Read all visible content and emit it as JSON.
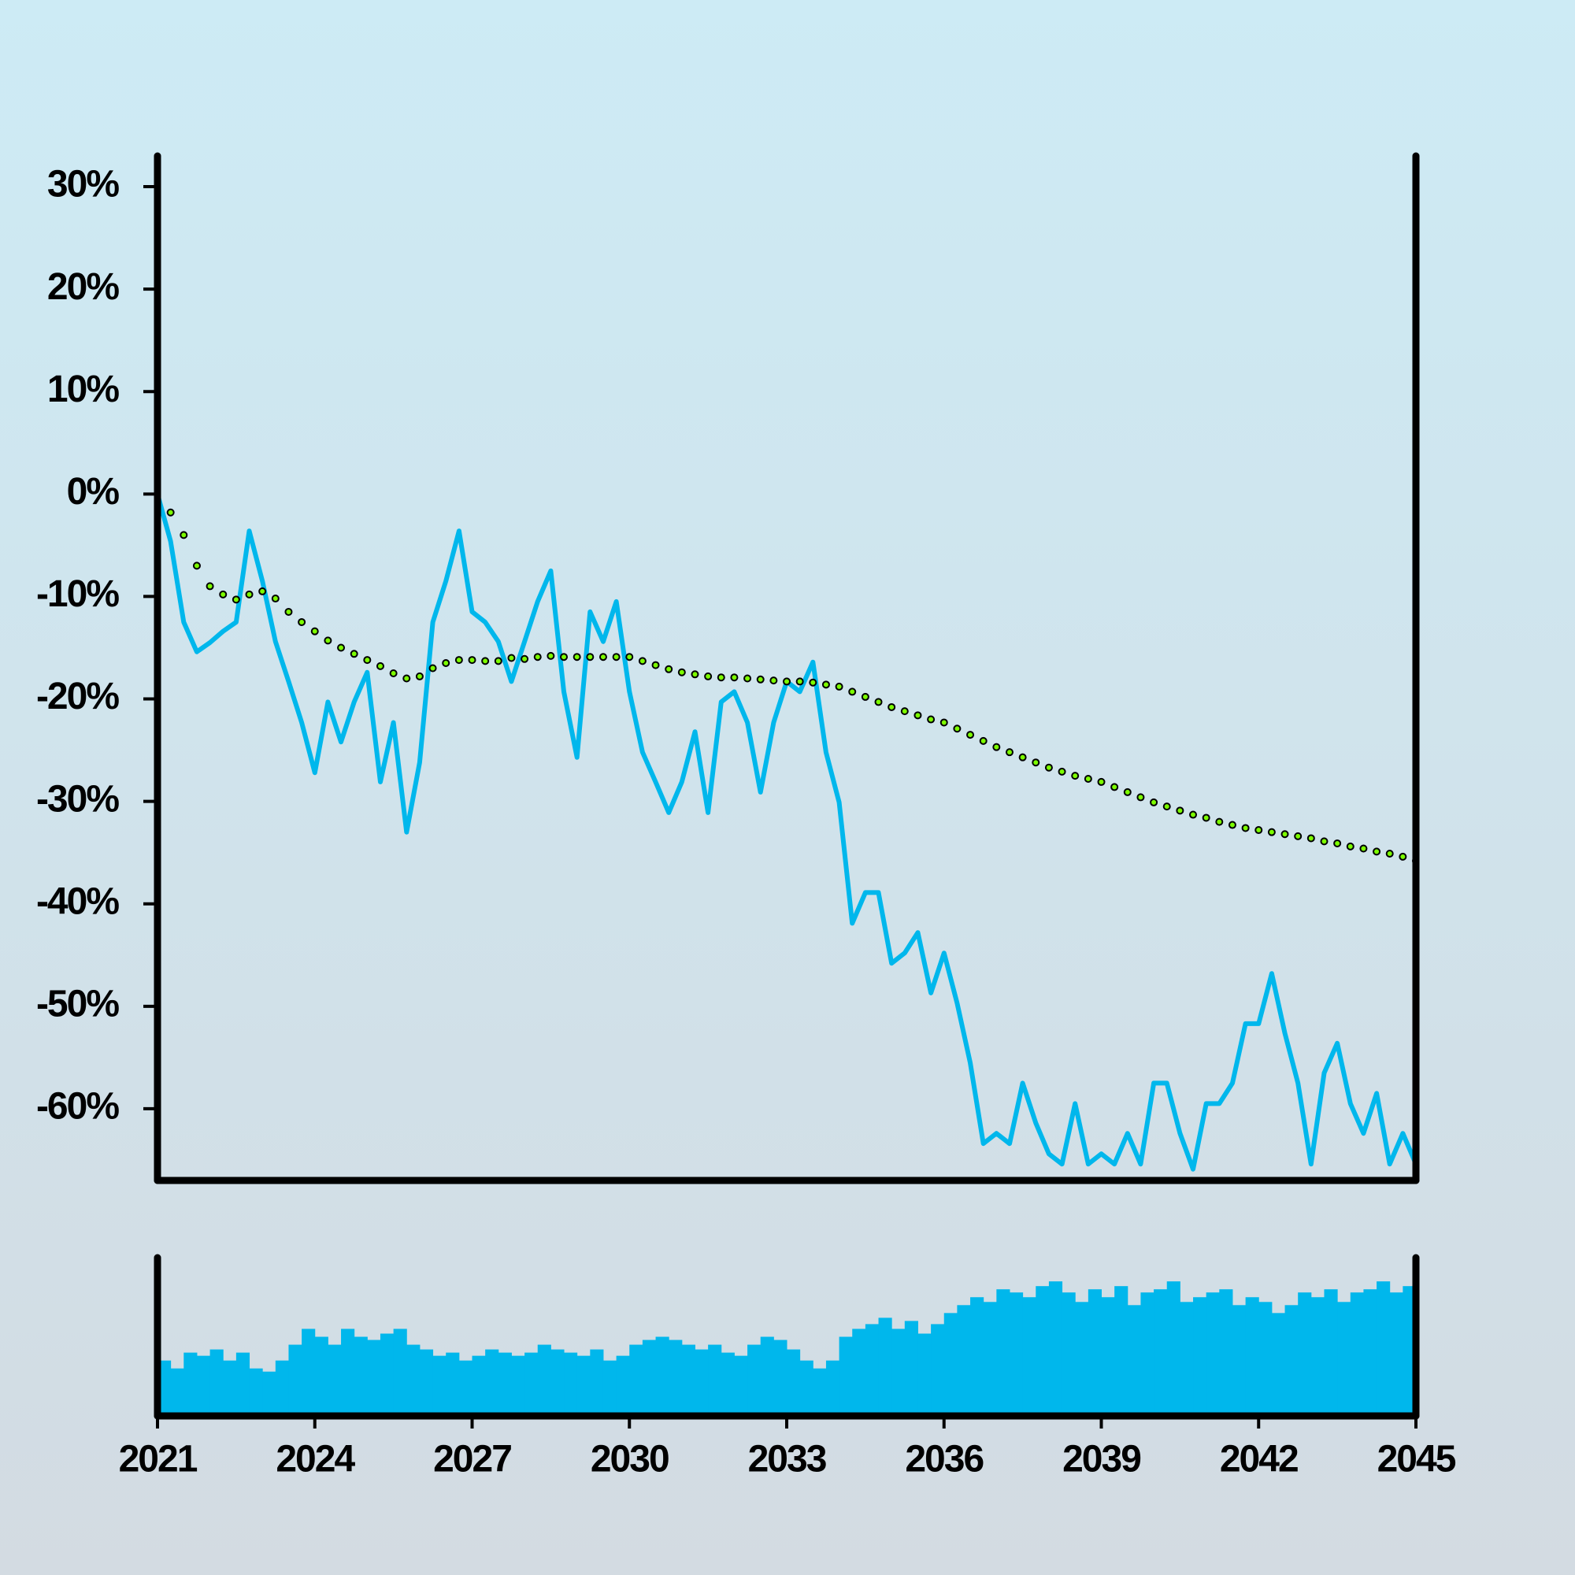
{
  "chart_data": [
    {
      "type": "line",
      "xlim": [
        2021,
        2045
      ],
      "ylim": [
        -67,
        33
      ],
      "yticks": [
        {
          "value": 30,
          "label": "30%"
        },
        {
          "value": 20,
          "label": "20%"
        },
        {
          "value": 10,
          "label": "10%"
        },
        {
          "value": 0,
          "label": "0%"
        },
        {
          "value": -10,
          "label": "-10%"
        },
        {
          "value": -20,
          "label": "-20%"
        },
        {
          "value": -30,
          "label": "-30%"
        },
        {
          "value": -40,
          "label": "-40%"
        },
        {
          "value": -50,
          "label": "-50%"
        },
        {
          "value": -60,
          "label": "-60%"
        }
      ],
      "x": [
        2021,
        2021.25,
        2021.5,
        2021.75,
        2022,
        2022.25,
        2022.5,
        2022.75,
        2023,
        2023.25,
        2023.5,
        2023.75,
        2024,
        2024.25,
        2024.5,
        2024.75,
        2025,
        2025.25,
        2025.5,
        2025.75,
        2026,
        2026.25,
        2026.5,
        2026.75,
        2027,
        2027.25,
        2027.5,
        2027.75,
        2028,
        2028.25,
        2028.5,
        2028.75,
        2029,
        2029.25,
        2029.5,
        2029.75,
        2030,
        2030.25,
        2030.5,
        2030.75,
        2031,
        2031.25,
        2031.5,
        2031.75,
        2032,
        2032.25,
        2032.5,
        2032.75,
        2033,
        2033.25,
        2033.5,
        2033.75,
        2034,
        2034.25,
        2034.5,
        2034.75,
        2035,
        2035.25,
        2035.5,
        2035.75,
        2036,
        2036.25,
        2036.5,
        2036.75,
        2037,
        2037.25,
        2037.5,
        2037.75,
        2038,
        2038.25,
        2038.5,
        2038.75,
        2039,
        2039.25,
        2039.5,
        2039.75,
        2040,
        2040.25,
        2040.5,
        2040.75,
        2041,
        2041.25,
        2041.5,
        2041.75,
        2042,
        2042.25,
        2042.5,
        2042.75,
        2043,
        2043.25,
        2043.5,
        2043.75,
        2044,
        2044.25,
        2044.5,
        2044.75,
        2045
      ],
      "series": [
        {
          "color": "#00b7ec",
          "style": "line",
          "values": [
            0,
            -4.6,
            -12.5,
            -15.4,
            -14.5,
            -13.4,
            -12.5,
            -3.6,
            -8.5,
            -14.4,
            -18.3,
            -22.3,
            -27.2,
            -20.3,
            -24.2,
            -20.3,
            -17.4,
            -28.1,
            -22.3,
            -33,
            -26.2,
            -12.5,
            -8.5,
            -3.6,
            -11.5,
            -12.5,
            -14.4,
            -18.3,
            -14.4,
            -10.5,
            -7.5,
            -19.3,
            -25.7,
            -11.5,
            -14.4,
            -10.5,
            -19.3,
            -25.2,
            -28.1,
            -31.1,
            -28.1,
            -23.2,
            -31.1,
            -20.3,
            -19.3,
            -22.3,
            -29.1,
            -22.3,
            -18.3,
            -19.3,
            -16.4,
            -25.2,
            -30.1,
            -41.9,
            -38.9,
            -38.9,
            -45.8,
            -44.8,
            -42.8,
            -48.7,
            -44.8,
            -49.7,
            -55.5,
            -63.4,
            -62.4,
            -63.4,
            -57.5,
            -61.4,
            -64.4,
            -65.4,
            -59.5,
            -65.4,
            -64.4,
            -65.4,
            -62.4,
            -65.4,
            -57.5,
            -57.5,
            -62.4,
            -65.9,
            -59.5,
            -59.5,
            -57.5,
            -51.7,
            -51.7,
            -46.8,
            -52.6,
            -57.5,
            -65.4,
            -56.5,
            -53.6,
            -59.5,
            -62.4,
            -58.5,
            -65.4,
            -62.4,
            -65.4
          ]
        },
        {
          "color": "#7cfc00",
          "style": "markers",
          "values": [
            null,
            -1.8,
            -4,
            -7,
            -9,
            -9.8,
            -10.3,
            -9.8,
            -9.5,
            -10.2,
            -11.5,
            -12.5,
            -13.4,
            -14.3,
            -15,
            -15.6,
            -16.2,
            -16.8,
            -17.5,
            -18,
            -17.8,
            -17,
            -16.5,
            -16.2,
            -16.2,
            -16.3,
            -16.3,
            -16,
            -16.1,
            -15.9,
            -15.8,
            -15.9,
            -15.9,
            -15.9,
            -15.9,
            -15.9,
            -15.9,
            -16.3,
            -16.7,
            -17.1,
            -17.4,
            -17.6,
            -17.8,
            -17.9,
            -17.9,
            -18,
            -18.1,
            -18.2,
            -18.3,
            -18.3,
            -18.4,
            -18.6,
            -18.8,
            -19.3,
            -19.8,
            -20.3,
            -20.8,
            -21.2,
            -21.6,
            -22,
            -22.3,
            -22.9,
            -23.5,
            -24.1,
            -24.7,
            -25.2,
            -25.7,
            -26.2,
            -26.7,
            -27.1,
            -27.5,
            -27.8,
            -28.1,
            -28.6,
            -29.1,
            -29.6,
            -30.1,
            -30.5,
            -30.9,
            -31.3,
            -31.6,
            -32,
            -32.3,
            -32.6,
            -32.8,
            -33,
            -33.2,
            -33.4,
            -33.6,
            -33.9,
            -34.1,
            -34.4,
            -34.6,
            -34.9,
            -35.1,
            -35.4,
            -35.8
          ]
        }
      ]
    },
    {
      "type": "bar",
      "color": "#00b7ec",
      "xlim": [
        2021,
        2045
      ],
      "xticks": [
        2021,
        2024,
        2027,
        2030,
        2033,
        2036,
        2039,
        2042,
        2045
      ],
      "ylim": [
        0,
        100
      ],
      "x": [
        2021,
        2021.25,
        2021.5,
        2021.75,
        2022,
        2022.25,
        2022.5,
        2022.75,
        2023,
        2023.25,
        2023.5,
        2023.75,
        2024,
        2024.25,
        2024.5,
        2024.75,
        2025,
        2025.25,
        2025.5,
        2025.75,
        2026,
        2026.25,
        2026.5,
        2026.75,
        2027,
        2027.25,
        2027.5,
        2027.75,
        2028,
        2028.25,
        2028.5,
        2028.75,
        2029,
        2029.25,
        2029.5,
        2029.75,
        2030,
        2030.25,
        2030.5,
        2030.75,
        2031,
        2031.25,
        2031.5,
        2031.75,
        2032,
        2032.25,
        2032.5,
        2032.75,
        2033,
        2033.25,
        2033.5,
        2033.75,
        2034,
        2034.25,
        2034.5,
        2034.75,
        2035,
        2035.25,
        2035.5,
        2035.75,
        2036,
        2036.25,
        2036.5,
        2036.75,
        2037,
        2037.25,
        2037.5,
        2037.75,
        2038,
        2038.25,
        2038.5,
        2038.75,
        2039,
        2039.25,
        2039.5,
        2039.75,
        2040,
        2040.25,
        2040.5,
        2040.75,
        2041,
        2041.25,
        2041.5,
        2041.75,
        2042,
        2042.25,
        2042.5,
        2042.75,
        2043,
        2043.25,
        2043.5,
        2043.75,
        2044,
        2044.25,
        2044.5,
        2044.75
      ],
      "values": [
        35,
        30,
        40,
        38,
        42,
        35,
        40,
        30,
        28,
        35,
        45,
        55,
        50,
        45,
        55,
        50,
        48,
        52,
        55,
        45,
        42,
        38,
        40,
        35,
        38,
        42,
        40,
        38,
        40,
        45,
        42,
        40,
        38,
        42,
        35,
        38,
        45,
        48,
        50,
        48,
        45,
        42,
        45,
        40,
        38,
        45,
        50,
        48,
        42,
        35,
        30,
        35,
        50,
        55,
        58,
        62,
        55,
        60,
        52,
        58,
        65,
        70,
        75,
        72,
        80,
        78,
        75,
        82,
        85,
        78,
        72,
        80,
        75,
        82,
        70,
        78,
        80,
        85,
        72,
        75,
        78,
        80,
        70,
        75,
        72,
        65,
        70,
        78,
        75,
        80,
        72,
        78,
        80,
        85,
        78,
        82
      ]
    }
  ]
}
